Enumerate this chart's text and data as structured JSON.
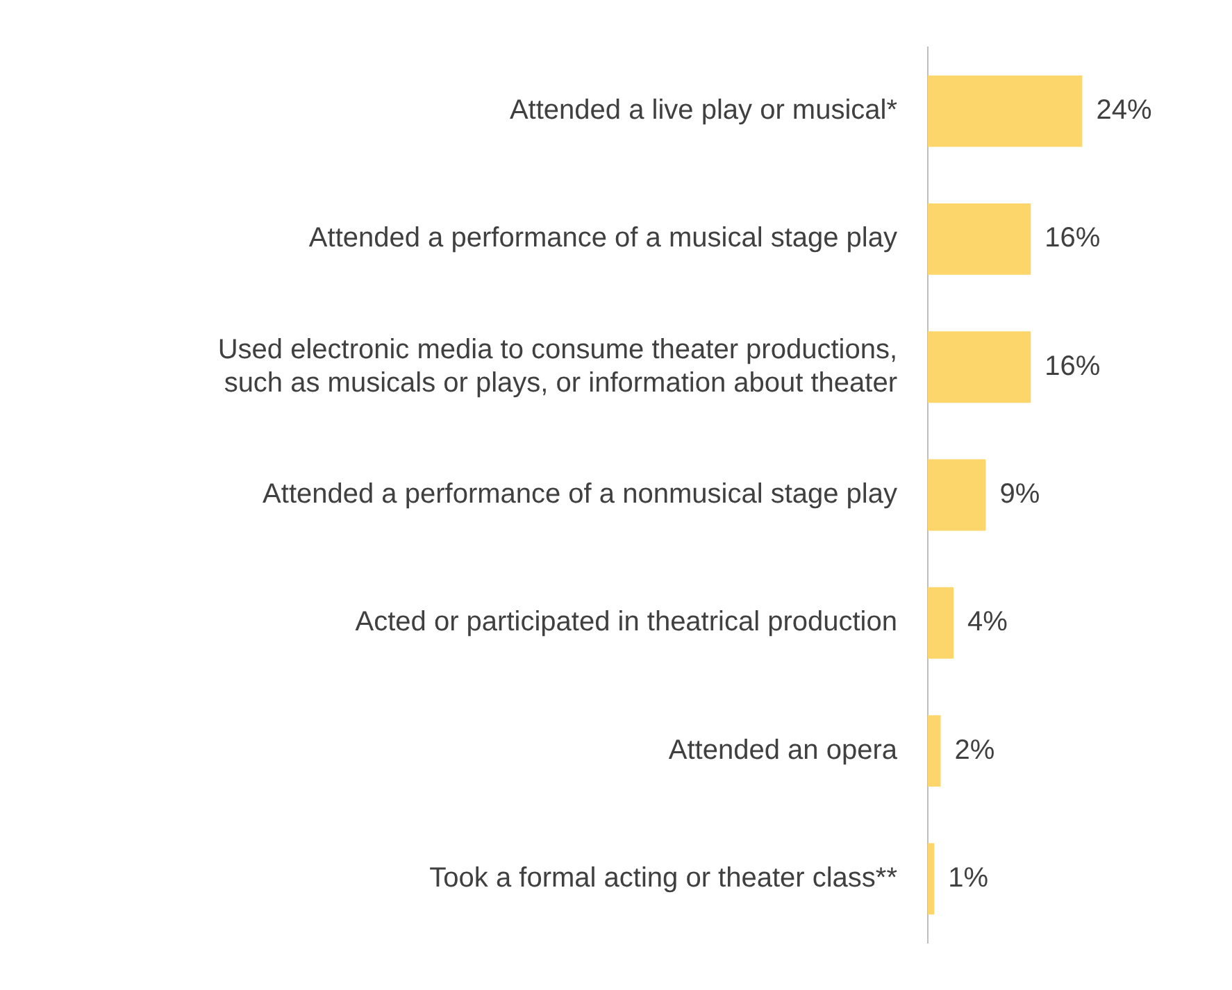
{
  "chart_data": {
    "type": "bar",
    "orientation": "horizontal",
    "categories": [
      "Attended a live play or musical*",
      "Attended a performance of a musical stage play",
      "Used electronic media to consume theater productions, such as musicals or plays, or information about theater",
      "Attended a performance of a nonmusical stage play",
      "Acted or participated in theatrical production",
      "Attended an opera",
      "Took a formal acting or theater class**"
    ],
    "values": [
      24,
      16,
      16,
      9,
      4,
      2,
      1
    ],
    "value_labels": [
      "24%",
      "16%",
      "16%",
      "9%",
      "4%",
      "2%",
      "1%"
    ],
    "color": "#fcd66b",
    "tick_labels": "y"
  }
}
